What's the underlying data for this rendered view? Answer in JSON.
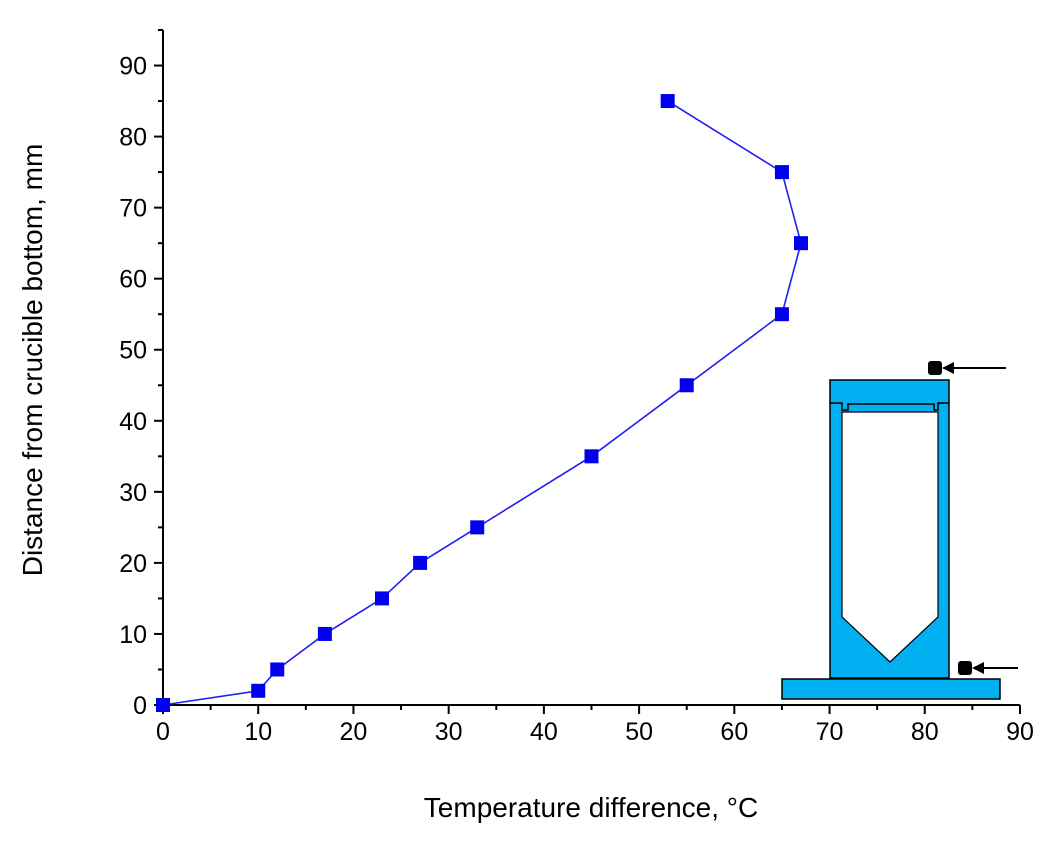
{
  "chart_data": {
    "type": "line",
    "title": "",
    "xlabel": "Temperature difference, ",
    "xlabel_unit": "°C",
    "ylabel": "Distance from crucible bottom, mm",
    "xlim": [
      0,
      90
    ],
    "ylim": [
      0,
      95
    ],
    "xticks": [
      0,
      10,
      20,
      30,
      40,
      50,
      60,
      70,
      80,
      90
    ],
    "yticks": [
      0,
      10,
      20,
      30,
      40,
      50,
      60,
      70,
      80,
      90
    ],
    "grid": false,
    "series": [
      {
        "name": "Temperature difference",
        "color": "#0000ee",
        "marker": "square",
        "x": [
          0,
          10,
          12,
          17,
          23,
          27,
          33,
          45,
          55,
          65,
          67,
          65,
          53
        ],
        "y": [
          0,
          2,
          5,
          10,
          15,
          20,
          25,
          35,
          45,
          55,
          65,
          75,
          85
        ]
      }
    ],
    "inset": {
      "description_icon": "crucible-schematic-icon",
      "fill_color": "#00b0f0",
      "thermocouple_color": "#000000"
    }
  }
}
